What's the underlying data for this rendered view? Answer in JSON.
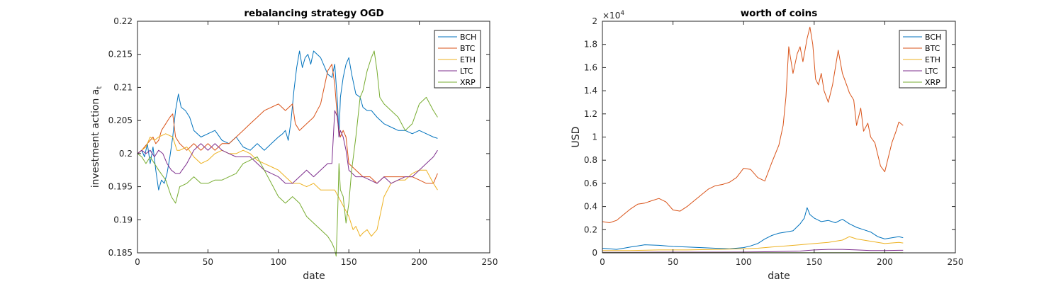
{
  "colors": {
    "BCH": "#0072BD",
    "BTC": "#D95319",
    "ETH": "#EDB120",
    "LTC": "#7E2F8E",
    "XRP": "#77AC30"
  },
  "chart_data": [
    {
      "type": "line",
      "title": "rebalancing strategy OGD",
      "xlabel": "date",
      "ylabel": "investment action a",
      "ylabel_subscript": "t",
      "xlim": [
        0,
        250
      ],
      "ylim": [
        0.185,
        0.22
      ],
      "xticks": [
        "0",
        "50",
        "100",
        "150",
        "200",
        "250"
      ],
      "yticks": [
        "0.185",
        "0.19",
        "0.195",
        "0.2",
        "0.205",
        "0.21",
        "0.215",
        "0.22"
      ],
      "legend": {
        "placement": "top-right",
        "entries": [
          "BCH",
          "BTC",
          "ETH",
          "LTC",
          "XRP"
        ]
      },
      "series": [
        {
          "name": "BCH",
          "x": [
            0,
            3,
            5,
            7,
            9,
            11,
            13,
            15,
            17,
            19,
            21,
            23,
            25,
            27,
            29,
            31,
            34,
            37,
            40,
            45,
            50,
            55,
            60,
            65,
            70,
            75,
            80,
            85,
            90,
            95,
            100,
            103,
            105,
            107,
            109,
            111,
            113,
            115,
            117,
            119,
            121,
            123,
            125,
            130,
            135,
            138,
            140,
            142,
            143,
            144,
            146,
            148,
            150,
            152,
            155,
            158,
            160,
            163,
            166,
            170,
            175,
            180,
            185,
            190,
            195,
            200,
            205,
            210,
            213
          ],
          "y": [
            0.2,
            0.2005,
            0.1995,
            0.2015,
            0.1985,
            0.201,
            0.1975,
            0.1945,
            0.196,
            0.1955,
            0.197,
            0.1995,
            0.2025,
            0.2065,
            0.209,
            0.207,
            0.2065,
            0.2055,
            0.2035,
            0.2025,
            0.203,
            0.2035,
            0.202,
            0.2015,
            0.2025,
            0.201,
            0.2005,
            0.2015,
            0.2005,
            0.2015,
            0.2025,
            0.203,
            0.2035,
            0.202,
            0.205,
            0.2095,
            0.213,
            0.2155,
            0.213,
            0.2145,
            0.215,
            0.2135,
            0.2155,
            0.2145,
            0.212,
            0.2115,
            0.2135,
            0.2075,
            0.2025,
            0.2085,
            0.2115,
            0.2135,
            0.2145,
            0.212,
            0.209,
            0.2085,
            0.207,
            0.2065,
            0.2065,
            0.2055,
            0.2045,
            0.204,
            0.2035,
            0.2035,
            0.203,
            0.2035,
            0.203,
            0.2025,
            0.2023
          ]
        },
        {
          "name": "BTC",
          "x": [
            0,
            3,
            5,
            7,
            9,
            11,
            13,
            15,
            17,
            20,
            23,
            25,
            27,
            30,
            35,
            40,
            45,
            50,
            55,
            60,
            65,
            70,
            75,
            80,
            85,
            90,
            95,
            100,
            105,
            110,
            112,
            115,
            120,
            125,
            130,
            135,
            138,
            140,
            142,
            143,
            144,
            146,
            148,
            150,
            155,
            160,
            165,
            170,
            175,
            180,
            185,
            190,
            195,
            200,
            205,
            210,
            213
          ],
          "y": [
            0.2,
            0.2005,
            0.201,
            0.2015,
            0.202,
            0.2025,
            0.2015,
            0.202,
            0.2035,
            0.2045,
            0.2055,
            0.206,
            0.2025,
            0.2015,
            0.2005,
            0.2015,
            0.2005,
            0.2015,
            0.2005,
            0.2015,
            0.2015,
            0.2025,
            0.2035,
            0.2045,
            0.2055,
            0.2065,
            0.207,
            0.2075,
            0.2065,
            0.2075,
            0.2045,
            0.2035,
            0.2045,
            0.2055,
            0.2075,
            0.2125,
            0.2135,
            0.2105,
            0.205,
            0.2035,
            0.2025,
            0.2035,
            0.2025,
            0.1985,
            0.1975,
            0.1965,
            0.1965,
            0.1955,
            0.1965,
            0.1965,
            0.1965,
            0.1965,
            0.1965,
            0.196,
            0.1955,
            0.1955,
            0.197
          ]
        },
        {
          "name": "ETH",
          "x": [
            0,
            3,
            6,
            9,
            12,
            15,
            20,
            25,
            28,
            30,
            35,
            40,
            45,
            50,
            55,
            60,
            65,
            70,
            75,
            80,
            85,
            90,
            95,
            100,
            105,
            110,
            115,
            120,
            125,
            130,
            135,
            140,
            145,
            150,
            153,
            155,
            158,
            160,
            163,
            166,
            170,
            175,
            180,
            185,
            190,
            195,
            200,
            205,
            210,
            213
          ],
          "y": [
            0.2,
            0.2005,
            0.201,
            0.2025,
            0.202,
            0.2025,
            0.203,
            0.2025,
            0.2005,
            0.2005,
            0.201,
            0.1995,
            0.1985,
            0.199,
            0.2,
            0.2005,
            0.2,
            0.2,
            0.2005,
            0.2,
            0.199,
            0.1985,
            0.198,
            0.1975,
            0.1965,
            0.1955,
            0.1955,
            0.195,
            0.1955,
            0.1945,
            0.1945,
            0.1945,
            0.1925,
            0.1905,
            0.1885,
            0.189,
            0.1875,
            0.188,
            0.1885,
            0.1875,
            0.1885,
            0.1935,
            0.1955,
            0.196,
            0.196,
            0.197,
            0.1975,
            0.1975,
            0.1955,
            0.1945
          ]
        },
        {
          "name": "LTC",
          "x": [
            0,
            3,
            6,
            9,
            12,
            15,
            18,
            21,
            24,
            27,
            30,
            35,
            40,
            45,
            50,
            55,
            60,
            65,
            70,
            75,
            80,
            85,
            90,
            95,
            100,
            105,
            110,
            115,
            120,
            125,
            130,
            135,
            138,
            140,
            142,
            143,
            144,
            146,
            148,
            150,
            155,
            160,
            165,
            170,
            175,
            180,
            185,
            190,
            195,
            200,
            205,
            210,
            213
          ],
          "y": [
            0.2,
            0.2005,
            0.2,
            0.2005,
            0.1995,
            0.2005,
            0.2,
            0.1985,
            0.1975,
            0.197,
            0.197,
            0.1985,
            0.2005,
            0.2015,
            0.2005,
            0.2015,
            0.2005,
            0.2,
            0.1995,
            0.1995,
            0.1995,
            0.1985,
            0.1975,
            0.197,
            0.1965,
            0.1955,
            0.1955,
            0.1965,
            0.1975,
            0.1965,
            0.1975,
            0.1985,
            0.1985,
            0.2065,
            0.2055,
            0.2025,
            0.2035,
            0.2025,
            0.2005,
            0.1975,
            0.1965,
            0.1965,
            0.196,
            0.1955,
            0.1965,
            0.1955,
            0.196,
            0.1965,
            0.1965,
            0.1975,
            0.1985,
            0.1995,
            0.2005
          ]
        },
        {
          "name": "XRP",
          "x": [
            0,
            3,
            6,
            9,
            12,
            15,
            20,
            24,
            27,
            30,
            35,
            40,
            45,
            50,
            55,
            60,
            65,
            70,
            75,
            80,
            85,
            90,
            95,
            100,
            105,
            110,
            115,
            120,
            125,
            130,
            135,
            138,
            140,
            141,
            142,
            143,
            144,
            146,
            148,
            150,
            152,
            155,
            158,
            160,
            163,
            166,
            168,
            170,
            172,
            175,
            180,
            185,
            190,
            195,
            200,
            205,
            210,
            213
          ],
          "y": [
            0.2,
            0.1995,
            0.1985,
            0.1995,
            0.1985,
            0.1975,
            0.196,
            0.1935,
            0.1925,
            0.195,
            0.1955,
            0.1965,
            0.1955,
            0.1955,
            0.196,
            0.196,
            0.1965,
            0.197,
            0.1985,
            0.199,
            0.1995,
            0.1975,
            0.1955,
            0.1935,
            0.1925,
            0.1935,
            0.1925,
            0.1905,
            0.1895,
            0.1885,
            0.1875,
            0.1865,
            0.1855,
            0.1845,
            0.1905,
            0.1985,
            0.1945,
            0.1935,
            0.1895,
            0.1925,
            0.1975,
            0.2025,
            0.2085,
            0.2095,
            0.2125,
            0.2145,
            0.2155,
            0.2125,
            0.2085,
            0.2075,
            0.2065,
            0.2055,
            0.2035,
            0.2045,
            0.2075,
            0.2085,
            0.2065,
            0.2055
          ]
        }
      ]
    },
    {
      "type": "line",
      "title": "worth of coins",
      "xlabel": "date",
      "ylabel": "USD",
      "xlim": [
        0,
        250
      ],
      "ylim": [
        0,
        2
      ],
      "y_exponent_base": "×10",
      "y_exponent_power": "4",
      "xticks": [
        "0",
        "50",
        "100",
        "150",
        "200",
        "250"
      ],
      "yticks": [
        "0",
        "0.2",
        "0.4",
        "0.6",
        "0.8",
        "1",
        "1.2",
        "1.4",
        "1.6",
        "1.8",
        "2"
      ],
      "legend": {
        "placement": "top-right",
        "entries": [
          "BCH",
          "BTC",
          "ETH",
          "LTC",
          "XRP"
        ]
      },
      "series": [
        {
          "name": "BCH",
          "x": [
            0,
            10,
            15,
            20,
            25,
            30,
            40,
            50,
            60,
            70,
            80,
            90,
            100,
            105,
            110,
            115,
            120,
            125,
            130,
            135,
            140,
            143,
            145,
            147,
            150,
            155,
            160,
            165,
            170,
            175,
            180,
            185,
            190,
            195,
            200,
            205,
            210,
            213
          ],
          "y": [
            0.04,
            0.03,
            0.04,
            0.05,
            0.06,
            0.07,
            0.065,
            0.055,
            0.05,
            0.045,
            0.04,
            0.035,
            0.045,
            0.06,
            0.08,
            0.12,
            0.15,
            0.17,
            0.18,
            0.19,
            0.25,
            0.3,
            0.39,
            0.33,
            0.3,
            0.27,
            0.28,
            0.26,
            0.29,
            0.25,
            0.22,
            0.2,
            0.18,
            0.14,
            0.12,
            0.13,
            0.14,
            0.13
          ]
        },
        {
          "name": "BTC",
          "x": [
            0,
            5,
            10,
            15,
            20,
            25,
            30,
            35,
            40,
            45,
            50,
            55,
            60,
            65,
            70,
            75,
            80,
            85,
            90,
            95,
            100,
            105,
            110,
            115,
            120,
            125,
            128,
            130,
            132,
            135,
            138,
            140,
            142,
            145,
            147,
            149,
            151,
            153,
            155,
            157,
            160,
            163,
            165,
            167,
            170,
            173,
            175,
            178,
            180,
            183,
            185,
            188,
            190,
            193,
            195,
            197,
            200,
            203,
            205,
            208,
            210,
            213
          ],
          "y": [
            0.27,
            0.26,
            0.28,
            0.33,
            0.38,
            0.42,
            0.43,
            0.45,
            0.47,
            0.44,
            0.37,
            0.36,
            0.4,
            0.45,
            0.5,
            0.55,
            0.58,
            0.59,
            0.61,
            0.65,
            0.73,
            0.72,
            0.65,
            0.62,
            0.78,
            0.93,
            1.1,
            1.35,
            1.78,
            1.55,
            1.72,
            1.78,
            1.65,
            1.85,
            1.95,
            1.8,
            1.5,
            1.45,
            1.55,
            1.4,
            1.3,
            1.45,
            1.6,
            1.75,
            1.55,
            1.45,
            1.38,
            1.32,
            1.1,
            1.25,
            1.05,
            1.12,
            1.0,
            0.95,
            0.85,
            0.75,
            0.7,
            0.85,
            0.95,
            1.05,
            1.13,
            1.1
          ]
        },
        {
          "name": "ETH",
          "x": [
            0,
            20,
            40,
            60,
            80,
            100,
            110,
            120,
            130,
            140,
            150,
            160,
            170,
            175,
            180,
            190,
            200,
            210,
            213
          ],
          "y": [
            0.02,
            0.02,
            0.025,
            0.025,
            0.03,
            0.035,
            0.04,
            0.05,
            0.06,
            0.07,
            0.08,
            0.09,
            0.11,
            0.14,
            0.12,
            0.1,
            0.08,
            0.09,
            0.085
          ]
        },
        {
          "name": "LTC",
          "x": [
            0,
            20,
            40,
            60,
            80,
            100,
            120,
            140,
            150,
            160,
            170,
            180,
            190,
            200,
            210,
            213
          ],
          "y": [
            0.005,
            0.005,
            0.006,
            0.006,
            0.006,
            0.007,
            0.01,
            0.015,
            0.025,
            0.03,
            0.03,
            0.025,
            0.02,
            0.02,
            0.022,
            0.022
          ]
        },
        {
          "name": "XRP",
          "x": [
            0,
            50,
            100,
            150,
            200,
            213
          ],
          "y": [
            0.001,
            0.001,
            0.001,
            0.001,
            0.001,
            0.001
          ]
        }
      ]
    }
  ]
}
